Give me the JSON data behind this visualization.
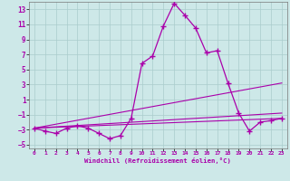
{
  "xlabel": "Windchill (Refroidissement éolien,°C)",
  "background_color": "#cde8e8",
  "grid_color": "#aacccc",
  "line_color": "#aa00aa",
  "xlim": [
    -0.5,
    23.5
  ],
  "ylim": [
    -5.5,
    14
  ],
  "yticks": [
    -5,
    -3,
    -1,
    1,
    3,
    5,
    7,
    9,
    11,
    13
  ],
  "xticks": [
    0,
    1,
    2,
    3,
    4,
    5,
    6,
    7,
    8,
    9,
    10,
    11,
    12,
    13,
    14,
    15,
    16,
    17,
    18,
    19,
    20,
    21,
    22,
    23
  ],
  "main_series": {
    "x": [
      0,
      1,
      2,
      3,
      4,
      5,
      6,
      7,
      8,
      9,
      10,
      11,
      12,
      13,
      14,
      15,
      16,
      17,
      18,
      19,
      20,
      21,
      22,
      23
    ],
    "y": [
      -2.8,
      -3.2,
      -3.5,
      -2.8,
      -2.5,
      -2.8,
      -3.5,
      -4.2,
      -3.8,
      -1.5,
      5.8,
      6.8,
      10.8,
      13.8,
      12.2,
      10.5,
      7.2,
      7.5,
      3.2,
      -0.8,
      -3.2,
      -2.0,
      -1.8,
      -1.5
    ]
  },
  "linear_series": [
    {
      "x0": 0,
      "y0": -2.8,
      "x1": 23,
      "y1": 3.2
    },
    {
      "x0": 0,
      "y0": -2.8,
      "x1": 23,
      "y1": -0.8
    },
    {
      "x0": 0,
      "y0": -2.8,
      "x1": 23,
      "y1": -1.5
    }
  ]
}
